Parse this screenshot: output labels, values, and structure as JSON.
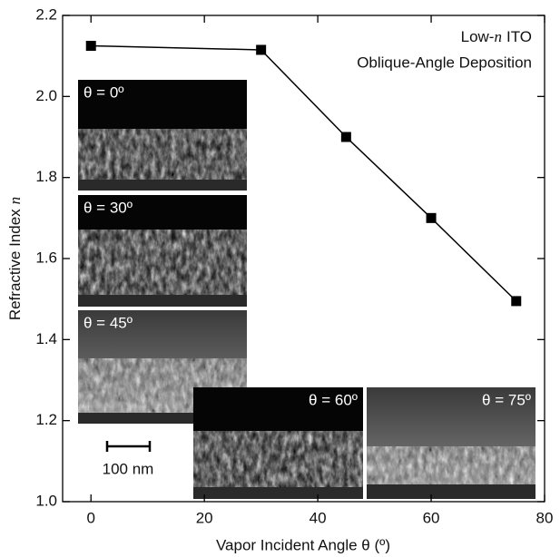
{
  "chart_data": {
    "type": "line",
    "annotation": {
      "line1": [
        "Low-",
        "n",
        "ITO"
      ],
      "line2": "Oblique-Angle Deposition"
    },
    "xlabel": "Vapor Incident Angle θ (º)",
    "ylabel": [
      "Refractive Index",
      "n"
    ],
    "x": [
      0,
      30,
      45,
      60,
      75
    ],
    "values": [
      2.125,
      2.115,
      1.9,
      1.7,
      1.495
    ],
    "color": "#000000",
    "xlim": [
      -5,
      80
    ],
    "xticks": [
      0,
      20,
      40,
      60,
      80
    ],
    "ylim": [
      1.0,
      2.2
    ],
    "yticks": [
      {
        "value": 1.0,
        "label": "1.0"
      },
      1.2,
      1.4,
      1.6,
      1.8,
      {
        "value": 2.0,
        "label": "2.0"
      },
      2.2
    ],
    "insets": [
      "θ = 0º",
      "θ = 30º",
      "θ = 45º",
      "θ = 60º",
      "θ = 75º"
    ],
    "scale_bar": "100 nm"
  }
}
